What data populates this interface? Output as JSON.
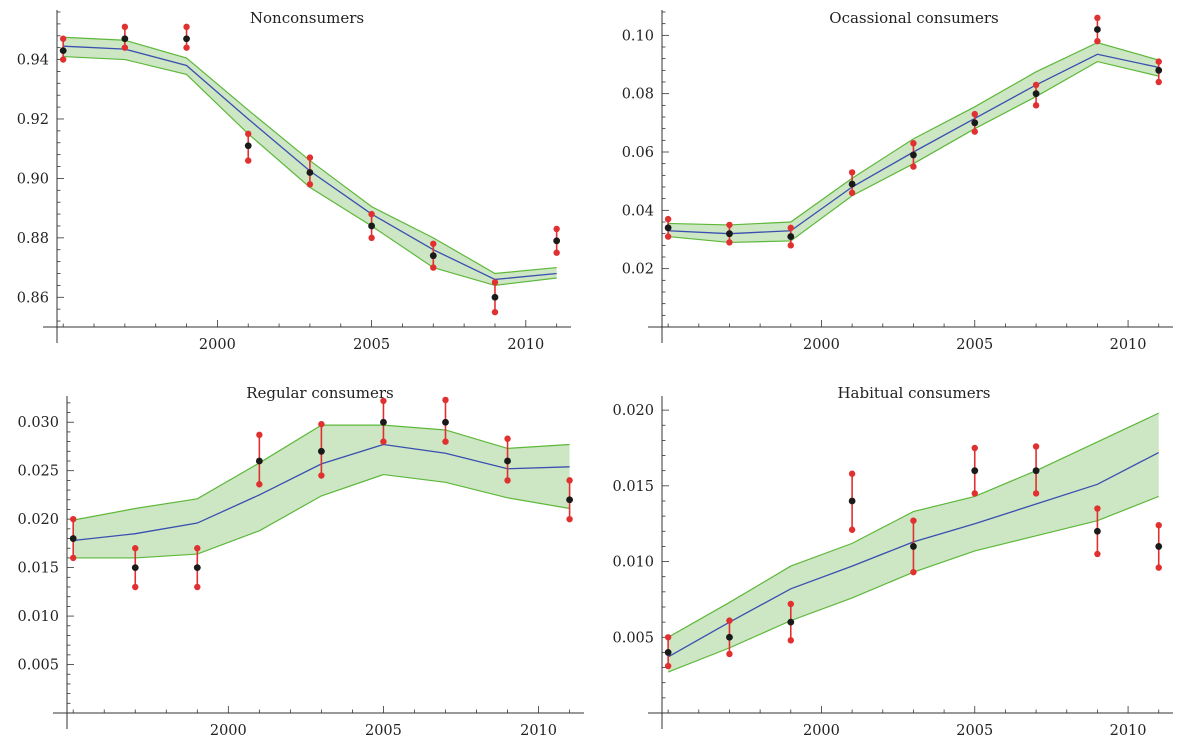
{
  "chart_data": [
    {
      "type": "line",
      "title": "Nonconsumers",
      "x": [
        1995,
        1997,
        1999,
        2001,
        2003,
        2005,
        2007,
        2009,
        2011
      ],
      "xlim": [
        1994.8,
        2011.4
      ],
      "ylim": [
        0.85,
        0.956
      ],
      "xticks": [
        2000,
        2005,
        2010
      ],
      "yticks": [
        0.86,
        0.88,
        0.9,
        0.92,
        0.94
      ],
      "ytick_labels": [
        "0.86",
        "0.88",
        "0.90",
        "0.92",
        "0.94"
      ],
      "fit": [
        0.9445,
        0.9435,
        0.938,
        0.92,
        0.9025,
        0.888,
        0.876,
        0.866,
        0.868
      ],
      "band_low": [
        0.941,
        0.94,
        0.935,
        0.915,
        0.897,
        0.884,
        0.87,
        0.864,
        0.8665
      ],
      "band_high": [
        0.9475,
        0.9465,
        0.9405,
        0.923,
        0.906,
        0.8905,
        0.88,
        0.868,
        0.87
      ],
      "observed": [
        0.943,
        0.947,
        0.947,
        0.911,
        0.902,
        0.884,
        0.874,
        0.86,
        0.879
      ],
      "err_low": [
        0.94,
        0.944,
        0.944,
        0.906,
        0.898,
        0.88,
        0.87,
        0.855,
        0.875
      ],
      "err_high": [
        0.947,
        0.951,
        0.951,
        0.915,
        0.907,
        0.888,
        0.878,
        0.865,
        0.883
      ]
    },
    {
      "type": "line",
      "title": "Ocassional consumers",
      "x": [
        1995,
        1997,
        1999,
        2001,
        2003,
        2005,
        2007,
        2009,
        2011
      ],
      "xlim": [
        1994.8,
        2011.4
      ],
      "ylim": [
        0.0,
        0.108
      ],
      "xticks": [
        2000,
        2005,
        2010
      ],
      "yticks": [
        0.02,
        0.04,
        0.06,
        0.08,
        0.1
      ],
      "ytick_labels": [
        "0.02",
        "0.04",
        "0.06",
        "0.08",
        "0.10"
      ],
      "fit": [
        0.033,
        0.032,
        0.033,
        0.048,
        0.06,
        0.0715,
        0.083,
        0.0935,
        0.089
      ],
      "band_low": [
        0.031,
        0.029,
        0.0295,
        0.045,
        0.056,
        0.068,
        0.079,
        0.091,
        0.086
      ],
      "band_high": [
        0.0355,
        0.035,
        0.036,
        0.051,
        0.0645,
        0.0755,
        0.0875,
        0.0975,
        0.0915
      ],
      "observed": [
        0.034,
        0.032,
        0.031,
        0.049,
        0.059,
        0.07,
        0.08,
        0.102,
        0.088
      ],
      "err_low": [
        0.031,
        0.029,
        0.028,
        0.046,
        0.055,
        0.067,
        0.076,
        0.098,
        0.084
      ],
      "err_high": [
        0.037,
        0.035,
        0.034,
        0.053,
        0.063,
        0.073,
        0.083,
        0.106,
        0.091
      ]
    },
    {
      "type": "line",
      "title": "Regular consumers",
      "x": [
        1995,
        1997,
        1999,
        2001,
        2003,
        2005,
        2007,
        2009,
        2011
      ],
      "xlim": [
        1994.8,
        2011.4
      ],
      "ylim": [
        0.0,
        0.0325
      ],
      "xticks": [
        2000,
        2005,
        2010
      ],
      "yticks": [
        0.005,
        0.01,
        0.015,
        0.02,
        0.025,
        0.03
      ],
      "ytick_labels": [
        "0.005",
        "0.010",
        "0.015",
        "0.020",
        "0.025",
        "0.030"
      ],
      "fit": [
        0.0178,
        0.0185,
        0.0196,
        0.0225,
        0.0257,
        0.0277,
        0.0268,
        0.0252,
        0.0254
      ],
      "band_low": [
        0.016,
        0.016,
        0.0164,
        0.0188,
        0.0224,
        0.0246,
        0.0238,
        0.0222,
        0.0211
      ],
      "band_high": [
        0.0199,
        0.0211,
        0.0221,
        0.0258,
        0.0297,
        0.0297,
        0.0292,
        0.0273,
        0.0277
      ],
      "observed": [
        0.018,
        0.015,
        0.015,
        0.026,
        0.027,
        0.03,
        0.03,
        0.026,
        0.022
      ],
      "err_low": [
        0.016,
        0.013,
        0.013,
        0.0236,
        0.0245,
        0.028,
        0.028,
        0.024,
        0.02
      ],
      "err_high": [
        0.02,
        0.017,
        0.017,
        0.0287,
        0.0298,
        0.0322,
        0.0323,
        0.0283,
        0.024
      ]
    },
    {
      "type": "line",
      "title": "Habitual consumers",
      "x": [
        1995,
        1997,
        1999,
        2001,
        2003,
        2005,
        2007,
        2009,
        2011
      ],
      "xlim": [
        1994.8,
        2011.4
      ],
      "ylim": [
        0.0,
        0.0208
      ],
      "xticks": [
        2000,
        2005,
        2010
      ],
      "yticks": [
        0.005,
        0.01,
        0.015,
        0.02
      ],
      "ytick_labels": [
        "0.005",
        "0.010",
        "0.015",
        "0.020"
      ],
      "fit": [
        0.0037,
        0.006,
        0.0082,
        0.0097,
        0.0113,
        0.0125,
        0.0138,
        0.0151,
        0.0172
      ],
      "band_low": [
        0.0027,
        0.0043,
        0.0061,
        0.0076,
        0.0093,
        0.0107,
        0.0117,
        0.0127,
        0.0143
      ],
      "band_high": [
        0.005,
        0.0073,
        0.0097,
        0.0112,
        0.0133,
        0.0143,
        0.016,
        0.0179,
        0.0198
      ],
      "observed": [
        0.004,
        0.005,
        0.006,
        0.014,
        0.011,
        0.016,
        0.016,
        0.012,
        0.011
      ],
      "err_low": [
        0.0031,
        0.0039,
        0.0048,
        0.0121,
        0.0093,
        0.0145,
        0.0145,
        0.0105,
        0.0096
      ],
      "err_high": [
        0.005,
        0.0061,
        0.0072,
        0.0158,
        0.0127,
        0.0175,
        0.0176,
        0.0135,
        0.0124
      ]
    }
  ],
  "colors": {
    "band_fill": "#cde6c4",
    "band_edge": "#5db83a",
    "fit_line": "#3a4fb0",
    "error_bar": "#e03030",
    "observed_point": "#1a1a1a",
    "axis": "#333333"
  }
}
